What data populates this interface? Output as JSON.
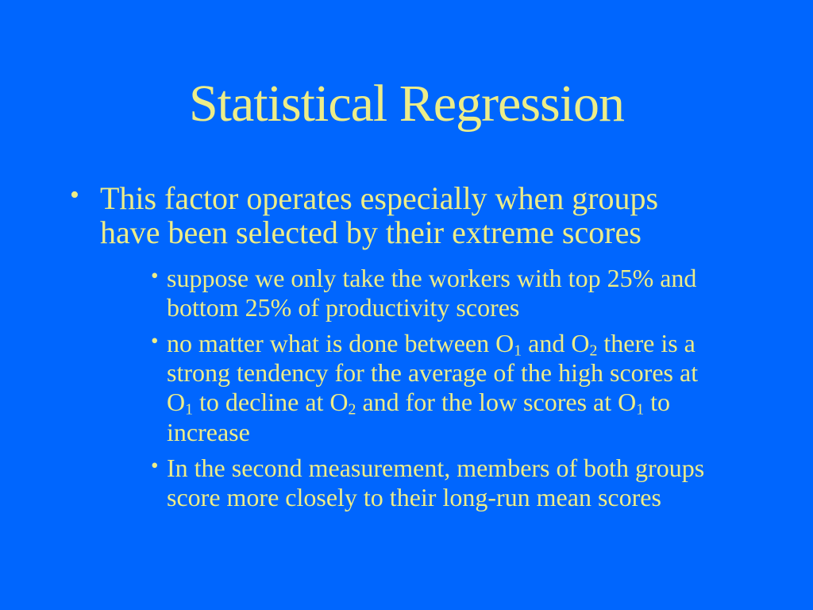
{
  "slide": {
    "title": "Statistical Regression",
    "bullet_char": "•",
    "colors": {
      "background": "#0066FE",
      "text": "#EDED88"
    },
    "bullets": [
      {
        "level": 1,
        "segments": [
          {
            "text": "This factor operates especially when groups have been selected by their extreme scores"
          }
        ]
      },
      {
        "level": 2,
        "segments": [
          {
            "text": "suppose we only take the workers with top 25% and bottom 25% of productivity scores"
          }
        ]
      },
      {
        "level": 2,
        "segments": [
          {
            "text": "no matter what is done between O"
          },
          {
            "text": "1",
            "sub": true
          },
          {
            "text": " and O"
          },
          {
            "text": "2",
            "sub": true
          },
          {
            "text": " there is a strong tendency for the average of the high scores at O"
          },
          {
            "text": "1",
            "sub": true
          },
          {
            "text": " to decline at O"
          },
          {
            "text": "2",
            "sub": true
          },
          {
            "text": " and for the low scores at O"
          },
          {
            "text": "1",
            "sub": true
          },
          {
            "text": " to increase"
          }
        ]
      },
      {
        "level": 2,
        "segments": [
          {
            "text": "In the second measurement, members of both groups score more closely to their long-run mean scores"
          }
        ]
      }
    ]
  }
}
